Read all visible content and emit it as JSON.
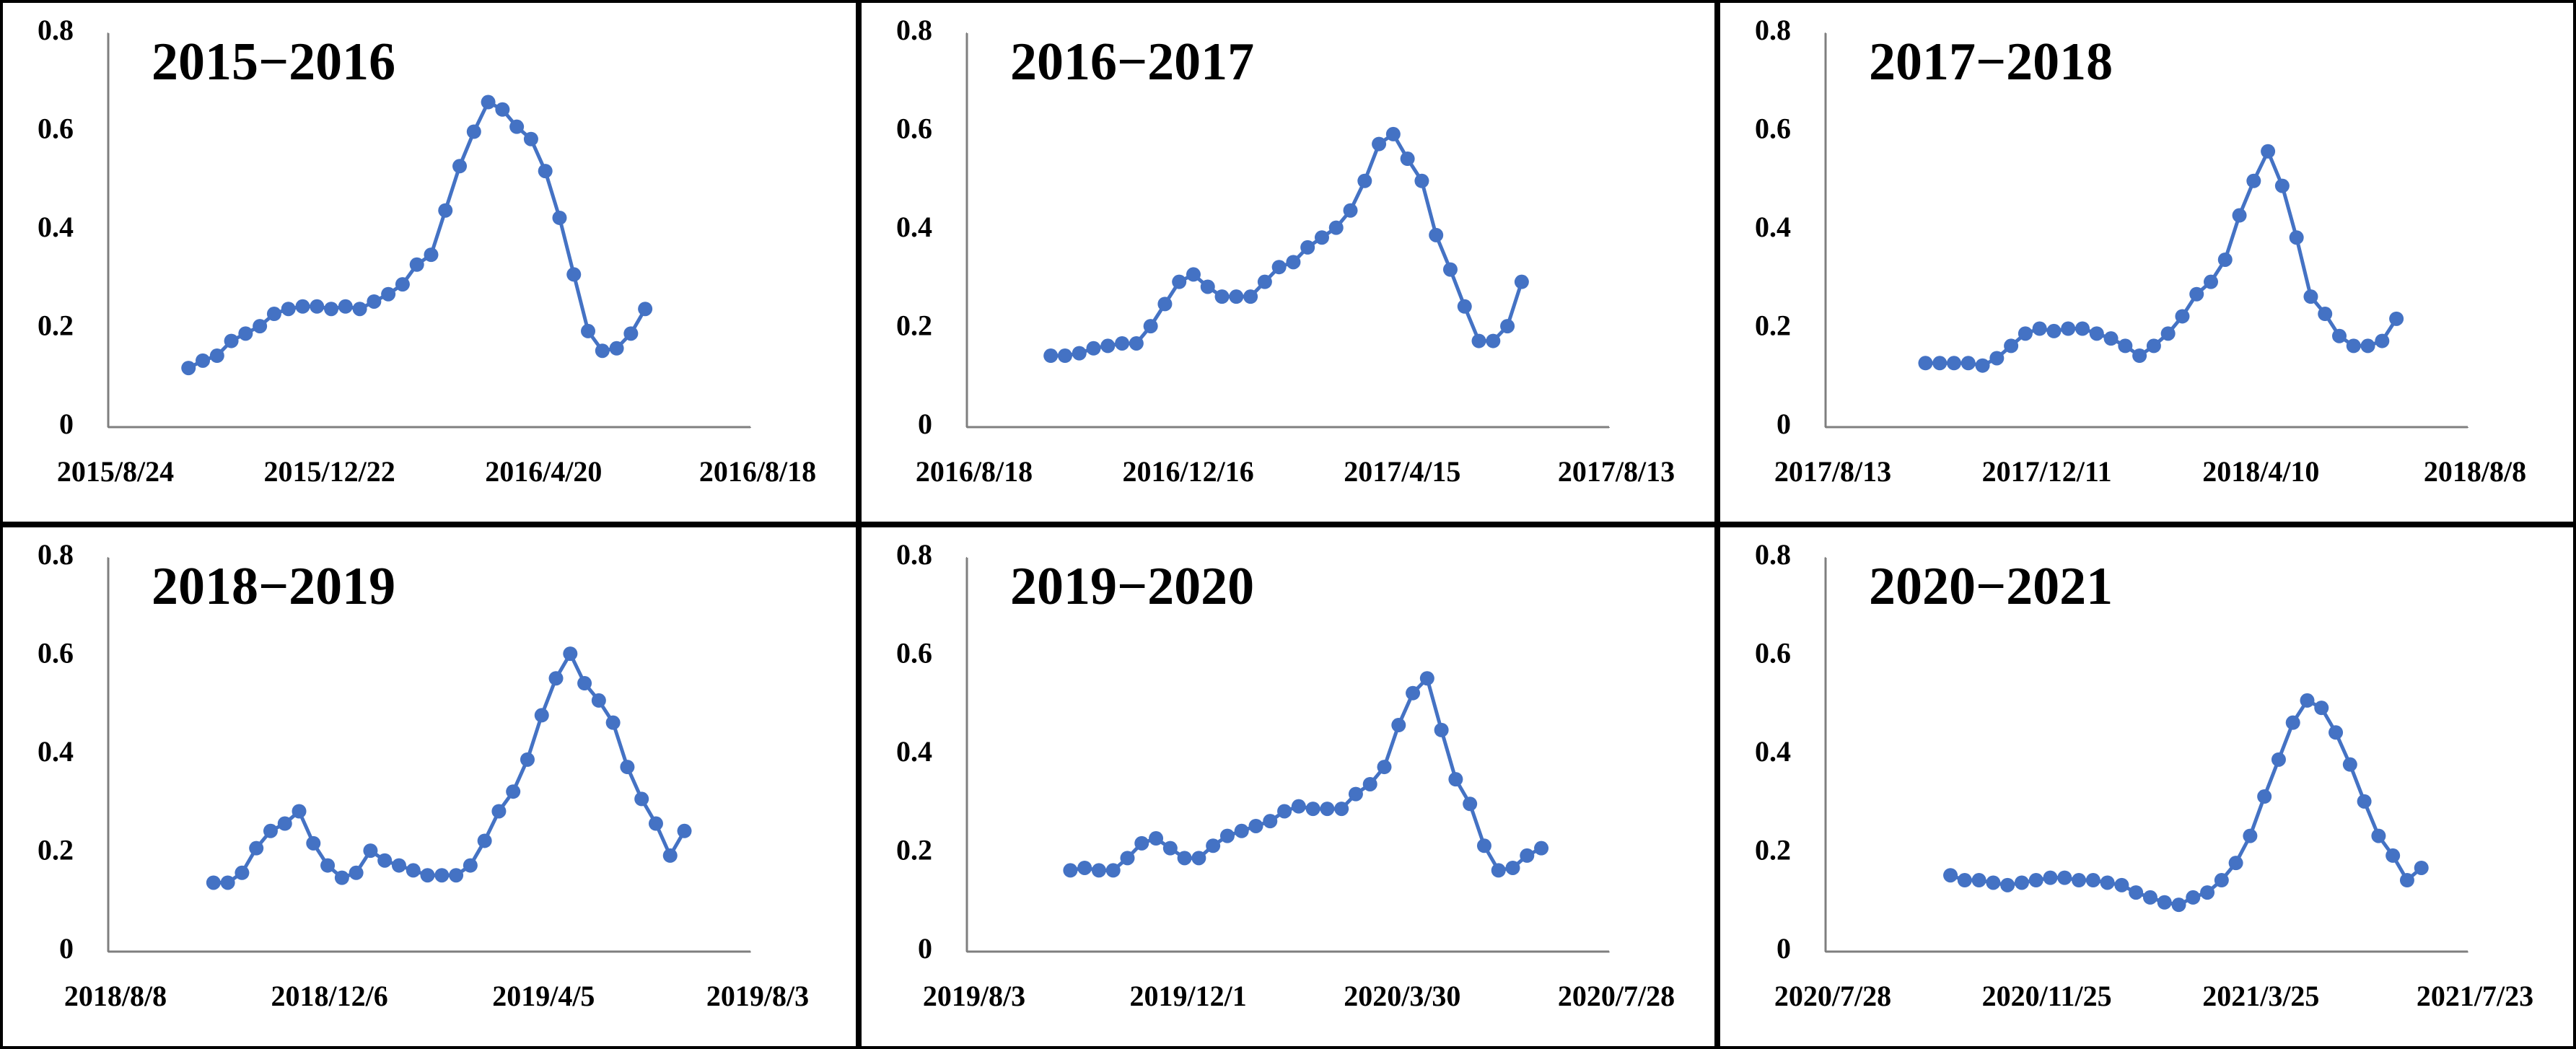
{
  "chart_data": [
    {
      "type": "line",
      "title": "2015−2016",
      "color": "#4472c4",
      "x": [
        "2015/10/8",
        "2015/10/16",
        "2015/10/24",
        "2015/11/1",
        "2015/11/9",
        "2015/11/17",
        "2015/11/25",
        "2015/12/3",
        "2015/12/11",
        "2015/12/19",
        "2015/12/27",
        "2016/1/4",
        "2016/1/12",
        "2016/1/20",
        "2016/1/28",
        "2016/2/5",
        "2016/2/13",
        "2016/2/21",
        "2016/2/29",
        "2016/3/8",
        "2016/3/16",
        "2016/3/24",
        "2016/4/1",
        "2016/4/9",
        "2016/4/17",
        "2016/4/25",
        "2016/5/3",
        "2016/5/11",
        "2016/5/19",
        "2016/5/27",
        "2016/6/4",
        "2016/6/12",
        "2016/6/20"
      ],
      "values": [
        0.12,
        0.135,
        0.145,
        0.175,
        0.19,
        0.205,
        0.23,
        0.24,
        0.245,
        0.245,
        0.24,
        0.245,
        0.24,
        0.255,
        0.27,
        0.29,
        0.33,
        0.35,
        0.44,
        0.53,
        0.6,
        0.66,
        0.645,
        0.61,
        0.585,
        0.52,
        0.425,
        0.31,
        0.195,
        0.155,
        0.16,
        0.19,
        0.24
      ],
      "xlim": [
        "2015/8/24",
        "2016/8/18"
      ],
      "xticks": [
        "2015/8/24",
        "2015/12/22",
        "2016/4/20",
        "2016/8/18"
      ],
      "ylim": [
        0,
        0.8
      ],
      "yticks": [
        0,
        0.2,
        0.4,
        0.6,
        0.8
      ]
    },
    {
      "type": "line",
      "title": "2016−2017",
      "color": "#4472c4",
      "x": [
        "2016/10/4",
        "2016/10/12",
        "2016/10/20",
        "2016/10/28",
        "2016/11/5",
        "2016/11/13",
        "2016/11/21",
        "2016/11/29",
        "2016/12/7",
        "2016/12/15",
        "2016/12/23",
        "2016/12/31",
        "2017/1/8",
        "2017/1/16",
        "2017/1/24",
        "2017/2/1",
        "2017/2/9",
        "2017/2/17",
        "2017/2/25",
        "2017/3/5",
        "2017/3/13",
        "2017/3/21",
        "2017/3/29",
        "2017/4/6",
        "2017/4/14",
        "2017/4/22",
        "2017/4/30",
        "2017/5/8",
        "2017/5/16",
        "2017/5/24",
        "2017/6/1",
        "2017/6/9",
        "2017/6/17",
        "2017/6/25"
      ],
      "values": [
        0.145,
        0.145,
        0.15,
        0.16,
        0.165,
        0.17,
        0.17,
        0.205,
        0.25,
        0.295,
        0.31,
        0.285,
        0.265,
        0.265,
        0.265,
        0.295,
        0.325,
        0.335,
        0.365,
        0.385,
        0.405,
        0.44,
        0.5,
        0.575,
        0.595,
        0.545,
        0.5,
        0.39,
        0.32,
        0.245,
        0.175,
        0.175,
        0.205,
        0.295
      ],
      "xlim": [
        "2016/8/18",
        "2017/8/13"
      ],
      "xticks": [
        "2016/8/18",
        "2016/12/16",
        "2017/4/15",
        "2017/8/13"
      ],
      "ylim": [
        0,
        0.8
      ],
      "yticks": [
        0,
        0.2,
        0.4,
        0.6,
        0.8
      ]
    },
    {
      "type": "line",
      "title": "2017−2018",
      "color": "#4472c4",
      "x": [
        "2017/10/8",
        "2017/10/16",
        "2017/10/24",
        "2017/11/1",
        "2017/11/9",
        "2017/11/17",
        "2017/11/25",
        "2017/12/3",
        "2017/12/11",
        "2017/12/19",
        "2017/12/27",
        "2018/1/4",
        "2018/1/12",
        "2018/1/20",
        "2018/1/28",
        "2018/2/5",
        "2018/2/13",
        "2018/2/21",
        "2018/3/1",
        "2018/3/9",
        "2018/3/17",
        "2018/3/25",
        "2018/4/2",
        "2018/4/10",
        "2018/4/18",
        "2018/4/26",
        "2018/5/4",
        "2018/5/12",
        "2018/5/20",
        "2018/5/28",
        "2018/6/5",
        "2018/6/13",
        "2018/6/21",
        "2018/6/29"
      ],
      "values": [
        0.13,
        0.13,
        0.13,
        0.13,
        0.125,
        0.14,
        0.165,
        0.19,
        0.2,
        0.195,
        0.2,
        0.2,
        0.19,
        0.18,
        0.165,
        0.145,
        0.165,
        0.19,
        0.225,
        0.27,
        0.295,
        0.34,
        0.43,
        0.5,
        0.56,
        0.49,
        0.385,
        0.265,
        0.23,
        0.185,
        0.165,
        0.165,
        0.175,
        0.22
      ],
      "xlim": [
        "2017/8/13",
        "2018/8/8"
      ],
      "xticks": [
        "2017/8/13",
        "2017/12/11",
        "2018/4/10",
        "2018/8/8"
      ],
      "ylim": [
        0,
        0.8
      ],
      "yticks": [
        0,
        0.2,
        0.4,
        0.6,
        0.8
      ]
    },
    {
      "type": "line",
      "title": "2018−2019",
      "color": "#4472c4",
      "x": [
        "2018/10/6",
        "2018/10/14",
        "2018/10/22",
        "2018/10/30",
        "2018/11/7",
        "2018/11/15",
        "2018/11/23",
        "2018/12/1",
        "2018/12/9",
        "2018/12/17",
        "2018/12/25",
        "2019/1/2",
        "2019/1/10",
        "2019/1/18",
        "2019/1/26",
        "2019/2/3",
        "2019/2/11",
        "2019/2/19",
        "2019/2/27",
        "2019/3/7",
        "2019/3/15",
        "2019/3/23",
        "2019/3/31",
        "2019/4/8",
        "2019/4/16",
        "2019/4/24",
        "2019/5/2",
        "2019/5/10",
        "2019/5/18",
        "2019/5/26",
        "2019/6/3",
        "2019/6/11",
        "2019/6/19",
        "2019/6/27"
      ],
      "values": [
        0.14,
        0.14,
        0.16,
        0.21,
        0.245,
        0.26,
        0.285,
        0.22,
        0.175,
        0.15,
        0.16,
        0.205,
        0.185,
        0.175,
        0.165,
        0.155,
        0.155,
        0.155,
        0.175,
        0.225,
        0.285,
        0.325,
        0.39,
        0.48,
        0.555,
        0.605,
        0.545,
        0.51,
        0.465,
        0.375,
        0.31,
        0.26,
        0.195,
        0.245
      ],
      "xlim": [
        "2018/8/8",
        "2019/8/3"
      ],
      "xticks": [
        "2018/8/8",
        "2018/12/6",
        "2019/4/5",
        "2019/8/3"
      ],
      "ylim": [
        0,
        0.8
      ],
      "yticks": [
        0,
        0.2,
        0.4,
        0.6,
        0.8
      ]
    },
    {
      "type": "line",
      "title": "2019−2020",
      "color": "#4472c4",
      "x": [
        "2019/9/30",
        "2019/10/8",
        "2019/10/16",
        "2019/10/24",
        "2019/11/1",
        "2019/11/9",
        "2019/11/17",
        "2019/11/25",
        "2019/12/3",
        "2019/12/11",
        "2019/12/19",
        "2019/12/27",
        "2020/1/4",
        "2020/1/12",
        "2020/1/20",
        "2020/1/28",
        "2020/2/5",
        "2020/2/13",
        "2020/2/21",
        "2020/2/29",
        "2020/3/8",
        "2020/3/16",
        "2020/3/24",
        "2020/4/1",
        "2020/4/9",
        "2020/4/17",
        "2020/4/25",
        "2020/5/3",
        "2020/5/11",
        "2020/5/19",
        "2020/5/27",
        "2020/6/4",
        "2020/6/12",
        "2020/6/20"
      ],
      "values": [
        0.165,
        0.17,
        0.165,
        0.165,
        0.19,
        0.22,
        0.23,
        0.21,
        0.19,
        0.19,
        0.215,
        0.235,
        0.245,
        0.255,
        0.265,
        0.285,
        0.295,
        0.29,
        0.29,
        0.29,
        0.32,
        0.34,
        0.375,
        0.46,
        0.525,
        0.555,
        0.45,
        0.35,
        0.3,
        0.215,
        0.165,
        0.17,
        0.195,
        0.21
      ],
      "xlim": [
        "2019/8/3",
        "2020/7/28"
      ],
      "xticks": [
        "2019/8/3",
        "2019/12/1",
        "2020/3/30",
        "2020/7/28"
      ],
      "ylim": [
        0,
        0.8
      ],
      "yticks": [
        0,
        0.2,
        0.4,
        0.6,
        0.8
      ]
    },
    {
      "type": "line",
      "title": "2020−2021",
      "color": "#4472c4",
      "x": [
        "2020/10/6",
        "2020/10/14",
        "2020/10/22",
        "2020/10/30",
        "2020/11/7",
        "2020/11/15",
        "2020/11/23",
        "2020/12/1",
        "2020/12/9",
        "2020/12/17",
        "2020/12/25",
        "2021/1/2",
        "2021/1/10",
        "2021/1/18",
        "2021/1/26",
        "2021/2/3",
        "2021/2/11",
        "2021/2/19",
        "2021/2/27",
        "2021/3/7",
        "2021/3/15",
        "2021/3/23",
        "2021/3/31",
        "2021/4/8",
        "2021/4/16",
        "2021/4/24",
        "2021/5/2",
        "2021/5/10",
        "2021/5/18",
        "2021/5/26",
        "2021/6/3",
        "2021/6/11",
        "2021/6/19",
        "2021/6/27"
      ],
      "values": [
        0.155,
        0.145,
        0.145,
        0.14,
        0.135,
        0.14,
        0.145,
        0.15,
        0.15,
        0.145,
        0.145,
        0.14,
        0.135,
        0.12,
        0.11,
        0.1,
        0.095,
        0.11,
        0.12,
        0.145,
        0.18,
        0.235,
        0.315,
        0.39,
        0.465,
        0.51,
        0.495,
        0.445,
        0.38,
        0.305,
        0.235,
        0.195,
        0.145,
        0.17
      ],
      "xlim": [
        "2020/7/28",
        "2021/7/23"
      ],
      "xticks": [
        "2020/7/28",
        "2020/11/25",
        "2021/3/25",
        "2021/7/23"
      ],
      "ylim": [
        0,
        0.8
      ],
      "yticks": [
        0,
        0.2,
        0.4,
        0.6,
        0.8
      ]
    }
  ]
}
